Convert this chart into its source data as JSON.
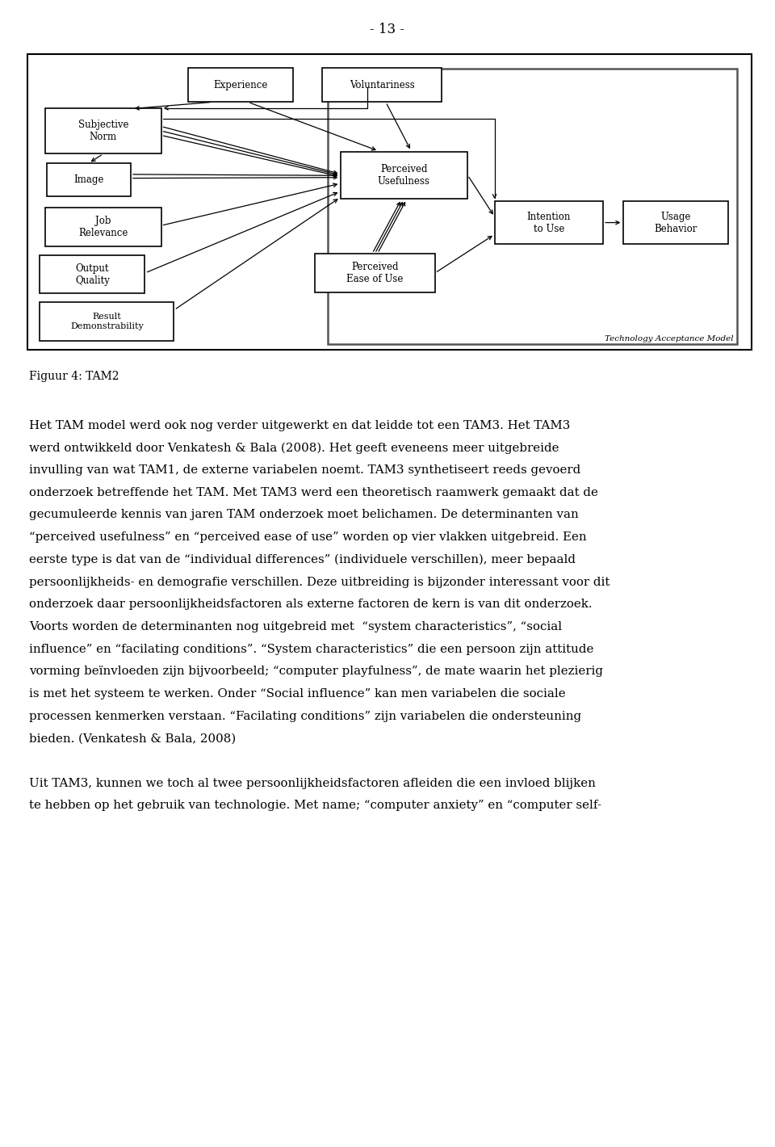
{
  "page_number": "- 13 -",
  "figure_caption": "Figuur 4: TAM2",
  "body_text": [
    "Het TAM model werd ook nog verder uitgewerkt en dat leidde tot een TAM3. Het TAM3",
    "werd ontwikkeld door Venkatesh & Bala (2008). Het geeft eveneens meer uitgebreide",
    "invulling van wat TAM1, de externe variabelen noemt. TAM3 synthetiseert reeds gevoerd",
    "onderzoek betreffende het TAM. Met TAM3 werd een theoretisch raamwerk gemaakt dat de",
    "gecumuleerde kennis van jaren TAM onderzoek moet belichamen. De determinanten van",
    "“perceived usefulness” en “perceived ease of use” worden op vier vlakken uitgebreid. Een",
    "eerste type is dat van de “individual differences” (individuele verschillen), meer bepaald",
    "persoonlijkheids- en demografie verschillen. Deze uitbreiding is bijzonder interessant voor dit",
    "onderzoek daar persoonlijkheidsfactoren als externe factoren de kern is van dit onderzoek.",
    "Voorts worden de determinanten nog uitgebreid met  “system characteristics”, “social",
    "influence” en “facilating conditions”. “System characteristics” die een persoon zijn attitude",
    "vorming beïnvloeden zijn bijvoorbeeld; “computer playfulness”, de mate waarin het plezierig",
    "is met het systeem te werken. Onder “Social influence” kan men variabelen die sociale",
    "processen kenmerken verstaan. “Facilating conditions” zijn variabelen die ondersteuning",
    "bieden. (Venkatesh & Bala, 2008)",
    "",
    "Uit TAM3, kunnen we toch al twee persoonlijkheidsfactoren afleiden die een invloed blijken",
    "te hebben op het gebruik van technologie. Met name; “computer anxiety” en “computer self-"
  ]
}
